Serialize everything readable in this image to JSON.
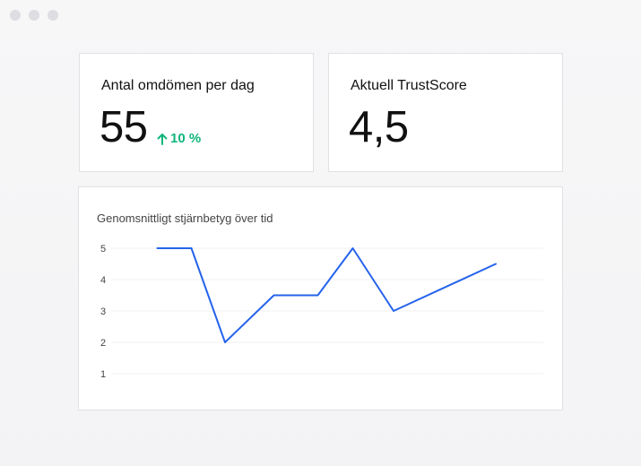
{
  "metrics": {
    "reviews_per_day": {
      "label": "Antal omdömen per dag",
      "value": "55",
      "delta": "10 %",
      "delta_icon": "arrow-up-icon"
    },
    "trustscore": {
      "label": "Aktuell TrustScore",
      "value": "4,5"
    }
  },
  "chart": {
    "title": "Genomsnittligt stjärnbetyg över tid"
  },
  "colors": {
    "accent": "#2563eb",
    "positive": "#10b57b",
    "card_border": "#e1e1e5",
    "background": "#f5f5f7"
  },
  "chart_data": {
    "type": "line",
    "title": "Genomsnittligt stjärnbetyg över tid",
    "xlabel": "",
    "ylabel": "",
    "ylim": [
      0.8,
      5.2
    ],
    "yticks": [
      1,
      2,
      3,
      4,
      5
    ],
    "grid": true,
    "x": [
      0,
      1,
      2,
      3,
      4,
      5,
      6,
      7
    ],
    "series": [
      {
        "values": [
          5,
          5,
          2,
          3.5,
          3.5,
          5,
          3,
          4.5
        ],
        "x": [
          0,
          0.83,
          1.65,
          2.78,
          3.85,
          4.85,
          5.85,
          8.35
        ]
      }
    ]
  }
}
